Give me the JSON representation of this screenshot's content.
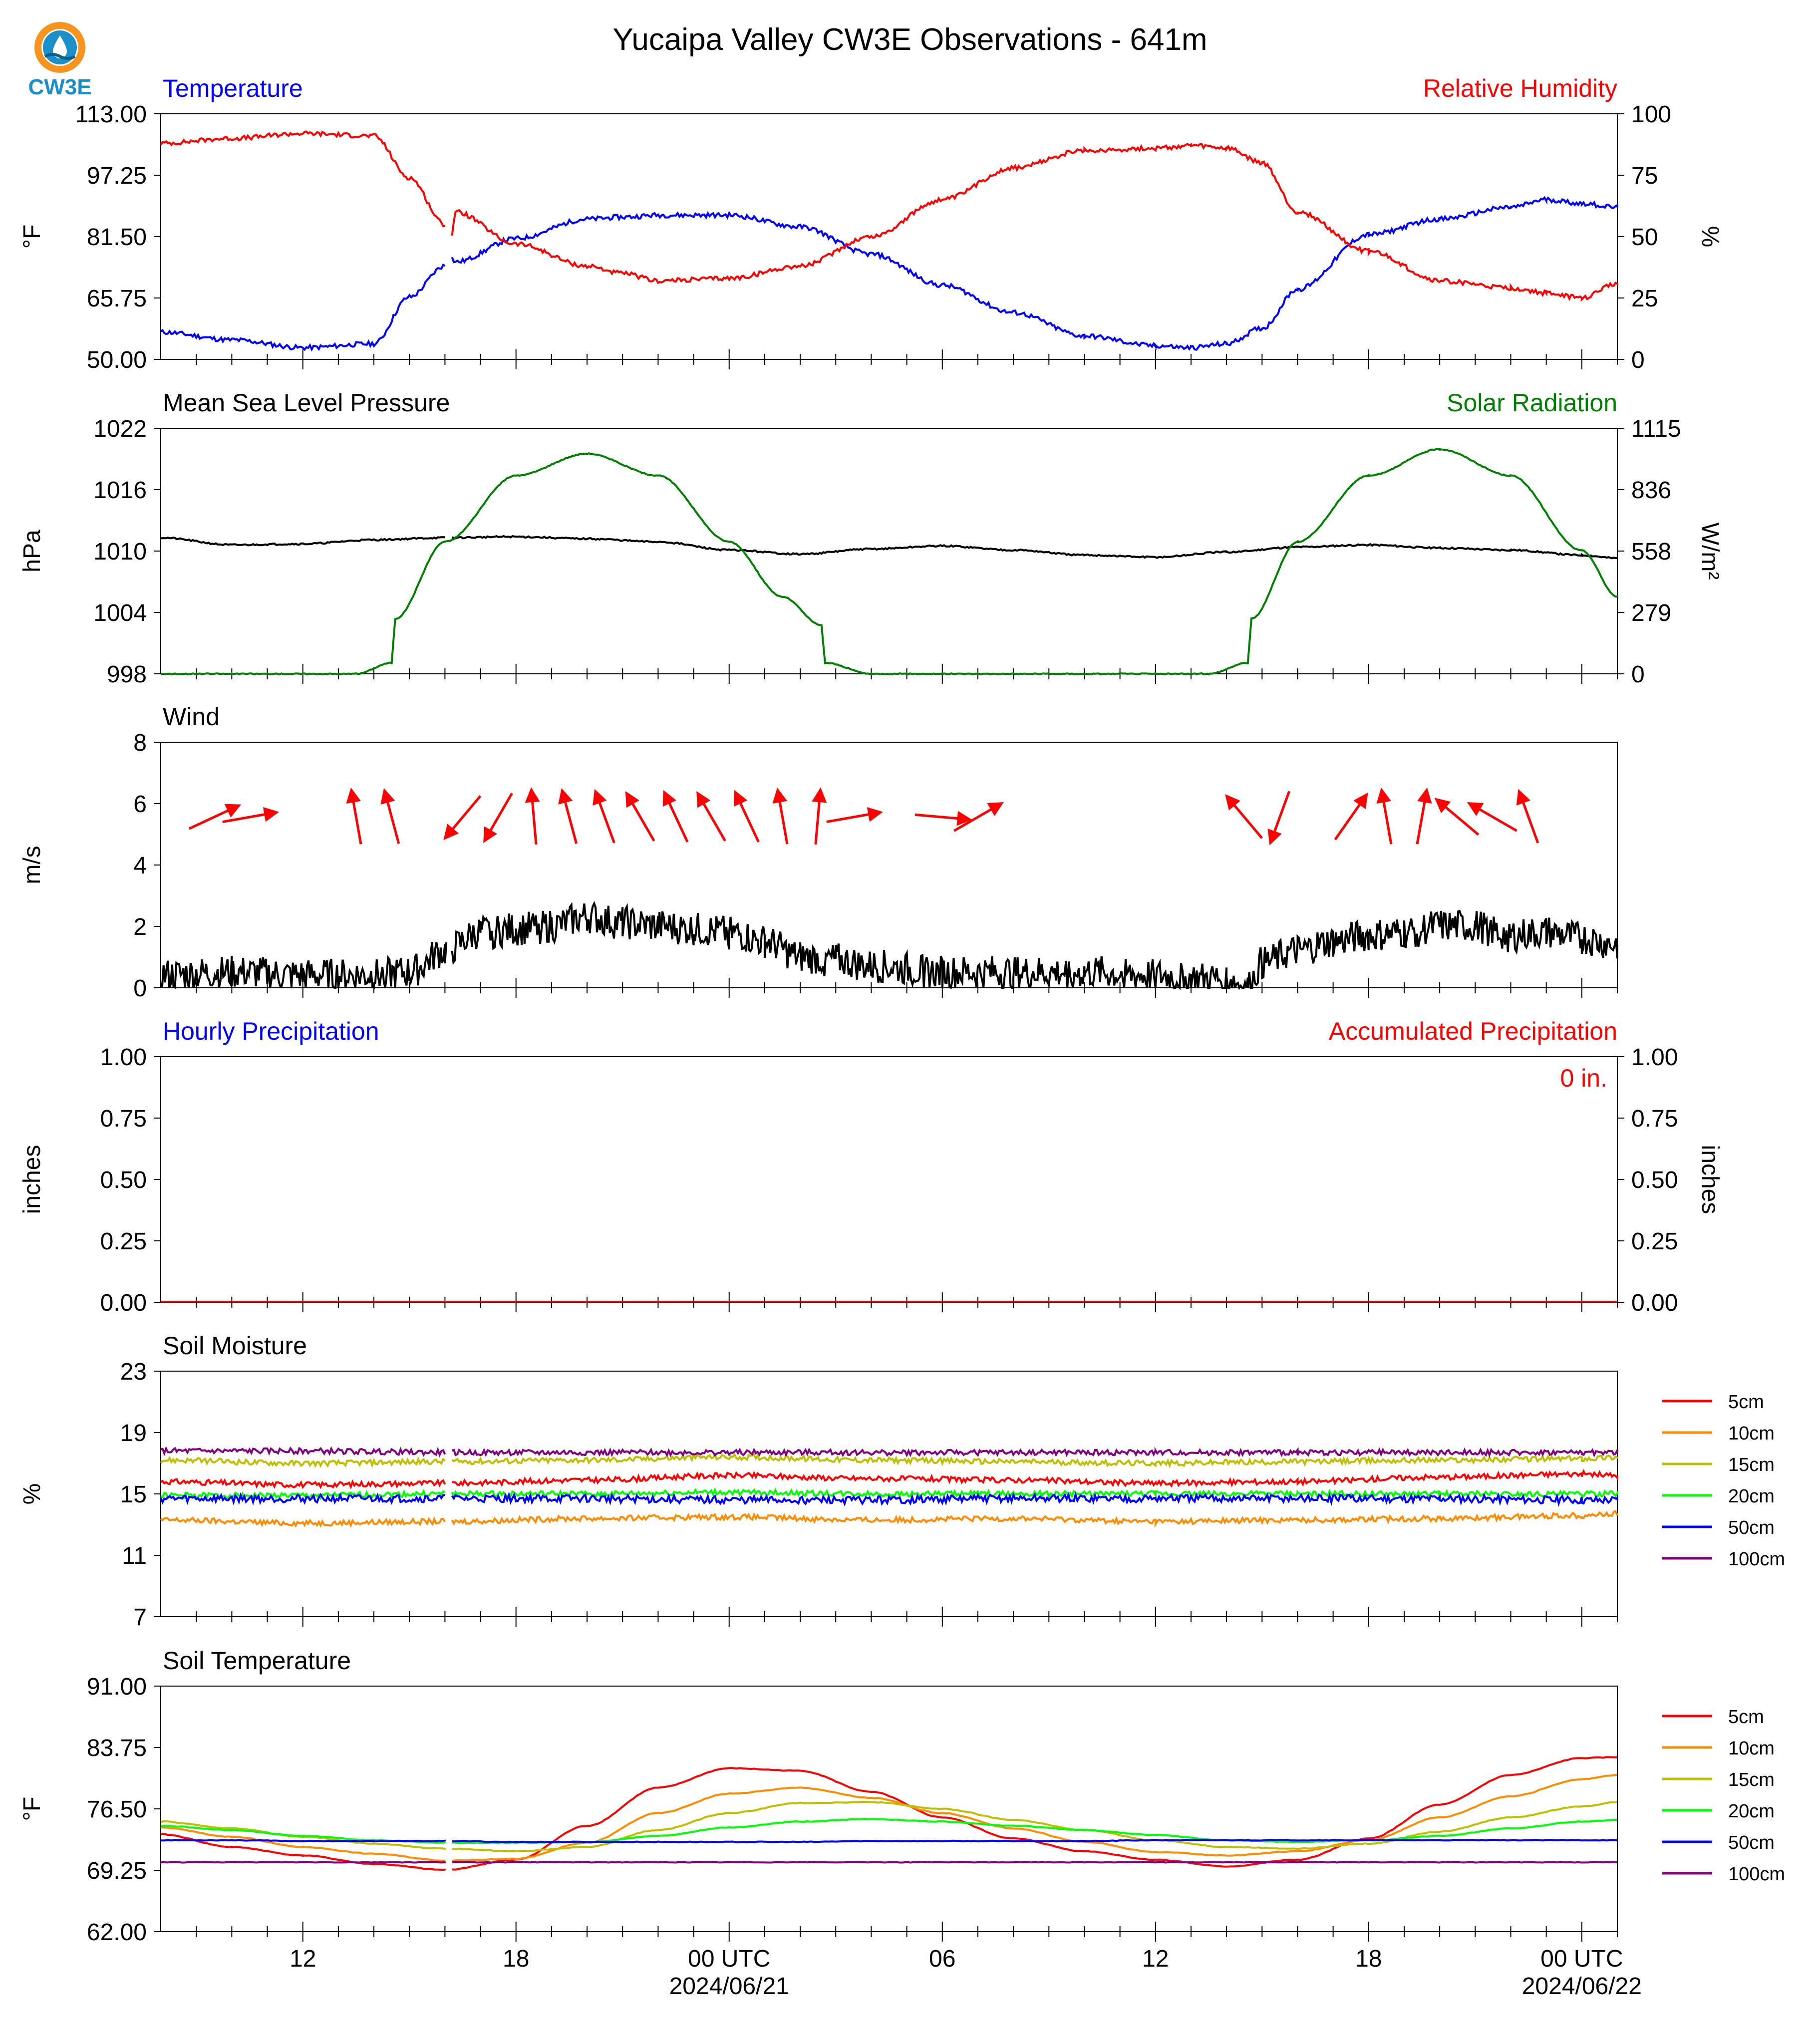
{
  "title": "Yucaipa Valley CW3E Observations - 641m",
  "logo": {
    "text": "CW3E",
    "colors": {
      "orange": "#f7941d",
      "blue": "#1a8fc9",
      "navy": "#0b5f8f"
    }
  },
  "colors": {
    "red": "#ff0000",
    "blue": "#0000ff",
    "green": "#008000",
    "black": "#000000",
    "orange": "#ff8c00",
    "olive": "#bfbf00",
    "lime": "#00ff00",
    "purple": "#800080"
  },
  "x_axis": {
    "tick_labels": [
      "12",
      "18",
      "00 UTC",
      "06",
      "12",
      "18",
      "00 UTC"
    ],
    "date_labels": [
      "2024/06/21",
      "2024/06/22"
    ]
  },
  "chart_data": [
    {
      "type": "line",
      "panel": "temperature_rh",
      "title_left": "Temperature",
      "title_right": "Relative Humidity",
      "ylabel_left": "$^\\circ$F",
      "ylabel_right": "%",
      "ylim_left": [
        50,
        113
      ],
      "ylim_right": [
        0,
        100
      ],
      "yticks_left": [
        "113.00",
        "97.25",
        "81.50",
        "65.75",
        "50.00"
      ],
      "yticks_right": [
        "100",
        "75",
        "50",
        "25",
        "0"
      ],
      "x_hours": [
        8,
        10,
        12,
        14,
        15,
        16,
        16.1,
        16.3,
        18,
        20,
        21,
        22,
        24,
        26,
        28,
        30,
        32,
        34,
        36,
        37,
        38,
        39,
        40,
        42,
        44,
        46,
        47,
        48,
        49
      ],
      "series": [
        {
          "name": "Temperature",
          "color": "#0000ff",
          "axis": "left",
          "values": [
            57,
            55,
            53,
            54,
            66,
            74,
            77,
            75,
            81,
            86,
            86.5,
            87,
            87,
            84,
            77,
            69,
            62,
            56,
            53.5,
            53,
            54,
            58,
            68,
            82,
            86,
            89,
            91,
            90,
            89
          ]
        },
        {
          "name": "Relative Humidity",
          "color": "#ff0000",
          "axis": "right",
          "values": [
            88,
            90,
            92,
            91,
            74,
            55,
            40,
            60,
            47,
            38,
            35,
            32,
            33,
            38,
            50,
            65,
            78,
            85,
            86,
            87,
            86,
            80,
            60,
            44,
            32,
            29,
            27,
            25,
            31
          ]
        }
      ],
      "gap_at_hour": 16.1
    },
    {
      "type": "line",
      "panel": "pressure_solar",
      "title_left": "Mean Sea Level Pressure",
      "title_right": "Solar Radiation",
      "ylabel_left": "hPa",
      "ylabel_right": "W/m²",
      "ylim_left": [
        998,
        1022
      ],
      "ylim_right": [
        0,
        1115
      ],
      "yticks_left": [
        "1022",
        "1016",
        "1010",
        "1004",
        "998"
      ],
      "yticks_right": [
        "1115",
        "836",
        "558",
        "279",
        "0"
      ],
      "series": [
        {
          "name": "Mean Sea Level Pressure",
          "color": "#000000",
          "axis": "left",
          "x_hours": [
            8,
            10,
            12,
            14,
            16,
            18,
            20,
            22,
            24,
            26,
            28,
            30,
            32,
            34,
            36,
            38,
            40,
            42,
            44,
            46,
            48,
            49
          ],
          "values": [
            1011.3,
            1010.6,
            1010.7,
            1011.1,
            1011.3,
            1011.4,
            1011.2,
            1010.9,
            1010.1,
            1009.7,
            1010.2,
            1010.5,
            1010.1,
            1009.6,
            1009.4,
            1009.9,
            1010.4,
            1010.6,
            1010.3,
            1010.1,
            1009.6,
            1009.3
          ]
        },
        {
          "name": "Solar Radiation",
          "color": "#008000",
          "axis": "right",
          "x_hours": [
            8,
            10,
            12,
            13.5,
            14.5,
            14.6,
            16,
            18,
            20,
            22,
            24,
            25.5,
            26.6,
            26.7,
            28,
            30,
            32,
            34,
            36,
            37.5,
            38.6,
            38.7,
            40,
            42,
            44,
            46,
            48,
            49
          ],
          "values": [
            0,
            0,
            0,
            0,
            50,
            250,
            600,
            900,
            1000,
            900,
            600,
            350,
            220,
            50,
            0,
            0,
            0,
            0,
            0,
            0,
            50,
            250,
            600,
            900,
            1020,
            900,
            560,
            350
          ]
        }
      ]
    },
    {
      "type": "line",
      "panel": "wind",
      "title_left": "Wind",
      "ylabel_left": "m/s",
      "ylim_left": [
        0,
        8
      ],
      "yticks_left": [
        "8",
        "6",
        "4",
        "2",
        "0"
      ],
      "series": [
        {
          "name": "Wind Speed",
          "color": "#000000",
          "x_hours": [
            8,
            10,
            12,
            14,
            15,
            16,
            17,
            18,
            19,
            20,
            21,
            22,
            23,
            24,
            25,
            26,
            27,
            28,
            30,
            32,
            34,
            36,
            37,
            38,
            38.6,
            39,
            40,
            41,
            42,
            43,
            44,
            45,
            46,
            47,
            48,
            49
          ],
          "values": [
            0.4,
            0.5,
            0.4,
            0.4,
            0.5,
            1.2,
            1.8,
            1.9,
            2.0,
            2.3,
            2.1,
            2.0,
            1.9,
            1.8,
            1.5,
            1.0,
            0.9,
            0.7,
            0.5,
            0.5,
            0.5,
            0.4,
            0.3,
            0.3,
            0.0,
            0.8,
            1.2,
            1.5,
            1.7,
            1.8,
            2.0,
            2.0,
            1.7,
            1.8,
            1.6,
            1.4
          ]
        }
      ],
      "arrows": {
        "color": "#ff0000",
        "x_hours": [
          9.5,
          10.5,
          13.5,
          14.5,
          16.5,
          17.5,
          18.5,
          19.5,
          20.5,
          21.5,
          22.5,
          23.5,
          24.5,
          25.5,
          26.5,
          27.5,
          30,
          31,
          38.5,
          39.5,
          41.5,
          42.5,
          43.5,
          44.5,
          45.5,
          46.5
        ],
        "direction_deg": [
          65,
          80,
          350,
          345,
          220,
          210,
          355,
          345,
          340,
          330,
          335,
          330,
          335,
          350,
          5,
          80,
          95,
          60,
          320,
          200,
          35,
          350,
          10,
          310,
          300,
          340
        ]
      }
    },
    {
      "type": "line",
      "panel": "precipitation",
      "title_left": "Hourly Precipitation",
      "title_right": "Accumulated Precipitation",
      "ylabel_left": "inches",
      "ylabel_right": "inches",
      "ylim_left": [
        0,
        1
      ],
      "ylim_right": [
        0,
        1
      ],
      "yticks_left": [
        "1.00",
        "0.75",
        "0.50",
        "0.25",
        "0.00"
      ],
      "yticks_right": [
        "1.00",
        "0.75",
        "0.50",
        "0.25",
        "0.00"
      ],
      "annotation": "0 in.",
      "series": [
        {
          "name": "Hourly Precipitation",
          "color": "#0000ff",
          "x_hours": [
            8,
            49
          ],
          "values": [
            0,
            0
          ]
        },
        {
          "name": "Accumulated Precipitation",
          "color": "#ff0000",
          "x_hours": [
            8,
            49
          ],
          "values": [
            0,
            0
          ]
        }
      ]
    },
    {
      "type": "line",
      "panel": "soil_moisture",
      "title_left": "Soil Moisture",
      "ylabel_left": "%",
      "ylim_left": [
        7,
        23
      ],
      "yticks_left": [
        "23",
        "19",
        "15",
        "11",
        "7"
      ],
      "legend": "right",
      "x_hours": [
        8,
        12,
        16,
        20,
        24,
        28,
        32,
        36,
        40,
        44,
        48,
        49
      ],
      "series": [
        {
          "name": "5cm",
          "color": "#ff0000",
          "values": [
            15.8,
            15.6,
            15.7,
            15.9,
            16.2,
            16.0,
            15.9,
            15.7,
            15.8,
            16.1,
            16.3,
            16.2
          ]
        },
        {
          "name": "10cm",
          "color": "#ff8c00",
          "values": [
            13.3,
            13.1,
            13.2,
            13.4,
            13.5,
            13.3,
            13.4,
            13.2,
            13.3,
            13.4,
            13.6,
            13.7
          ]
        },
        {
          "name": "15cm",
          "color": "#bfbf00",
          "values": [
            17.2,
            17.0,
            17.1,
            17.2,
            17.4,
            17.2,
            17.1,
            17.0,
            17.1,
            17.2,
            17.3,
            17.4
          ]
        },
        {
          "name": "20cm",
          "color": "#00ff00",
          "values": [
            14.9,
            14.9,
            15.0,
            15.0,
            15.1,
            15.0,
            15.0,
            15.0,
            15.0,
            15.0,
            15.0,
            15.0
          ]
        },
        {
          "name": "50cm",
          "color": "#0000ff",
          "values": [
            14.7,
            14.7,
            14.7,
            14.7,
            14.6,
            14.6,
            14.7,
            14.7,
            14.7,
            14.7,
            14.6,
            14.6
          ]
        },
        {
          "name": "100cm",
          "color": "#800080",
          "values": [
            17.8,
            17.8,
            17.7,
            17.7,
            17.7,
            17.7,
            17.7,
            17.7,
            17.7,
            17.7,
            17.7,
            17.7
          ]
        }
      ]
    },
    {
      "type": "line",
      "panel": "soil_temperature",
      "title_left": "Soil Temperature",
      "ylabel_left": "$^\\circ$F",
      "ylim_left": [
        62,
        91
      ],
      "yticks_left": [
        "91.00",
        "83.75",
        "76.50",
        "69.25",
        "62.00"
      ],
      "legend": "right",
      "x_hours": [
        8,
        10,
        12,
        14,
        16,
        18,
        20,
        22,
        24,
        26,
        28,
        30,
        32,
        34,
        36,
        38,
        40,
        42,
        44,
        46,
        48,
        49
      ],
      "series": [
        {
          "name": "5cm",
          "color": "#ff0000",
          "values": [
            73.5,
            72.0,
            71.0,
            70.0,
            69.3,
            70.5,
            74.5,
            79.0,
            81.3,
            81.0,
            78.5,
            75.5,
            73.0,
            71.5,
            70.5,
            69.7,
            70.5,
            73.0,
            77.0,
            80.5,
            82.5,
            82.6
          ]
        },
        {
          "name": "10cm",
          "color": "#ff8c00",
          "values": [
            74.3,
            73.2,
            72.0,
            71.2,
            70.4,
            70.6,
            72.5,
            76.0,
            78.3,
            79.0,
            77.8,
            76.0,
            74.2,
            72.6,
            71.4,
            71.0,
            71.5,
            72.8,
            75.5,
            78.0,
            80.0,
            80.5
          ]
        },
        {
          "name": "15cm",
          "color": "#bfbf00",
          "values": [
            75.0,
            74.2,
            73.2,
            72.4,
            71.8,
            71.5,
            72.0,
            74.0,
            76.0,
            77.2,
            77.3,
            76.5,
            75.2,
            74.0,
            72.8,
            72.0,
            71.8,
            72.4,
            73.8,
            75.5,
            76.8,
            77.3
          ]
        },
        {
          "name": "20cm",
          "color": "#00ff00",
          "values": [
            74.5,
            74.0,
            73.3,
            72.8,
            72.5,
            72.5,
            72.6,
            73.3,
            74.3,
            75.0,
            75.3,
            75.0,
            74.5,
            74.0,
            73.4,
            72.8,
            72.6,
            72.8,
            73.3,
            74.2,
            75.0,
            75.2
          ]
        },
        {
          "name": "50cm",
          "color": "#0000ff",
          "values": [
            72.8,
            72.8,
            72.7,
            72.7,
            72.7,
            72.6,
            72.6,
            72.6,
            72.6,
            72.6,
            72.7,
            72.7,
            72.7,
            72.7,
            72.8,
            72.8,
            72.8,
            72.8,
            72.8,
            72.8,
            72.8,
            72.8
          ]
        },
        {
          "name": "100cm",
          "color": "#800080",
          "values": [
            70.2,
            70.2,
            70.2,
            70.2,
            70.2,
            70.2,
            70.2,
            70.2,
            70.2,
            70.2,
            70.2,
            70.2,
            70.2,
            70.2,
            70.2,
            70.2,
            70.2,
            70.2,
            70.2,
            70.2,
            70.2,
            70.2
          ]
        }
      ]
    }
  ]
}
